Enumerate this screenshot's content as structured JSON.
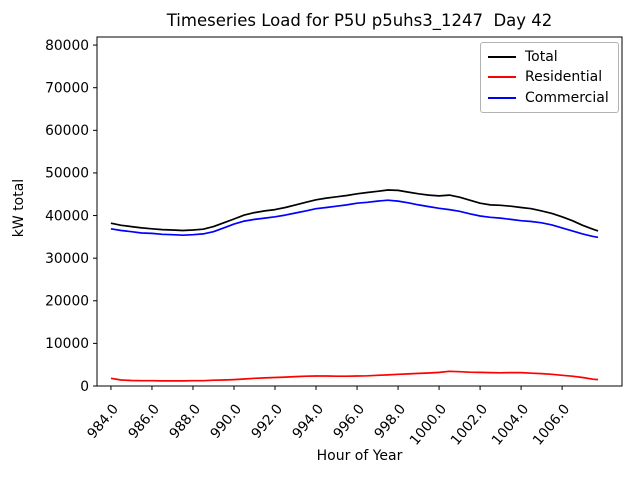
{
  "chart_data": {
    "type": "line",
    "title": "Timeseries Load for P5U p5uhs3_1247  Day 42",
    "xlabel": "Hour of Year",
    "ylabel": "kW total",
    "xlim": [
      983.32,
      1008.92
    ],
    "ylim": [
      0,
      81900
    ],
    "grid": false,
    "background_color": "#ffffff",
    "axes_color": "#000000",
    "legend": {
      "position": "upper right",
      "entries": [
        "Total",
        "Residential",
        "Commercial"
      ]
    },
    "xticks": {
      "values": [
        984,
        986,
        988,
        990,
        992,
        994,
        996,
        998,
        1000,
        1002,
        1004,
        1006
      ],
      "labels": [
        "984.0",
        "986.0",
        "988.0",
        "990.0",
        "992.0",
        "994.0",
        "996.0",
        "998.0",
        "1000.0",
        "1002.0",
        "1004.0",
        "1006.0"
      ],
      "rotation_deg": -50
    },
    "yticks": {
      "values": [
        0,
        10000,
        20000,
        30000,
        40000,
        50000,
        60000,
        70000,
        80000
      ],
      "labels": [
        "0",
        "10000",
        "20000",
        "30000",
        "40000",
        "50000",
        "60000",
        "70000",
        "80000"
      ]
    },
    "x": [
      984,
      984.5,
      985,
      985.5,
      986,
      986.5,
      987,
      987.5,
      988,
      988.5,
      989,
      989.5,
      990,
      990.5,
      991,
      991.5,
      992,
      992.5,
      993,
      993.5,
      994,
      994.5,
      995,
      995.5,
      996,
      996.5,
      997,
      997.5,
      998,
      998.5,
      999,
      999.5,
      1000,
      1000.5,
      1001,
      1001.5,
      1002,
      1002.5,
      1003,
      1003.5,
      1004,
      1004.5,
      1005,
      1005.5,
      1006,
      1006.5,
      1007,
      1007.5,
      1007.75
    ],
    "series": [
      {
        "name": "Total",
        "color": "#000000",
        "values": [
          38200,
          37700,
          37400,
          37100,
          36900,
          36700,
          36600,
          36500,
          36600,
          36800,
          37400,
          38300,
          39200,
          40100,
          40700,
          41100,
          41400,
          41900,
          42500,
          43100,
          43700,
          44100,
          44400,
          44700,
          45100,
          45400,
          45700,
          46000,
          45900,
          45500,
          45100,
          44800,
          44600,
          44800,
          44300,
          43600,
          42900,
          42500,
          42400,
          42200,
          41900,
          41600,
          41100,
          40500,
          39700,
          38800,
          37700,
          36800,
          36400
        ]
      },
      {
        "name": "Residential",
        "color": "#ff0000",
        "values": [
          1800,
          1400,
          1300,
          1250,
          1250,
          1200,
          1200,
          1200,
          1250,
          1250,
          1350,
          1400,
          1500,
          1650,
          1800,
          1900,
          2000,
          2100,
          2200,
          2300,
          2350,
          2350,
          2300,
          2300,
          2350,
          2400,
          2500,
          2600,
          2750,
          2850,
          2950,
          3050,
          3200,
          3450,
          3350,
          3250,
          3200,
          3150,
          3100,
          3150,
          3150,
          3000,
          2900,
          2750,
          2500,
          2300,
          2000,
          1600,
          1500
        ]
      },
      {
        "name": "Commercial",
        "color": "#0000ff",
        "values": [
          36900,
          36500,
          36200,
          35900,
          35800,
          35600,
          35500,
          35400,
          35500,
          35700,
          36200,
          37100,
          38000,
          38700,
          39100,
          39400,
          39700,
          40100,
          40600,
          41100,
          41600,
          41900,
          42200,
          42500,
          42900,
          43100,
          43400,
          43600,
          43400,
          43000,
          42500,
          42100,
          41700,
          41400,
          41000,
          40400,
          39900,
          39600,
          39400,
          39100,
          38800,
          38600,
          38300,
          37800,
          37100,
          36400,
          35700,
          35100,
          34900
        ]
      }
    ]
  }
}
